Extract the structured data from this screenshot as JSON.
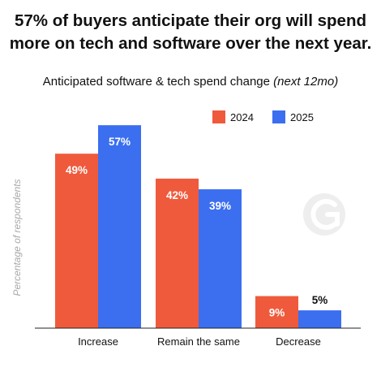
{
  "headline": {
    "line1": "57% of buyers anticipate their org will spend",
    "line2": "more on tech and software over the next year."
  },
  "chart_data": {
    "type": "bar",
    "title": "Anticipated software & tech spend change",
    "title_suffix": "(next 12mo)",
    "ylabel": "Percentage of respondents",
    "xlabel": "",
    "categories": [
      "Increase",
      "Remain the same",
      "Decrease"
    ],
    "series": [
      {
        "name": "2024",
        "values": [
          49,
          42,
          9
        ],
        "labels": [
          "49%",
          "42%",
          "9%"
        ],
        "color": "#ef5a3c"
      },
      {
        "name": "2025",
        "values": [
          57,
          39,
          5
        ],
        "labels": [
          "57%",
          "39%",
          "5%"
        ],
        "color": "#3b6ff0"
      }
    ],
    "ylim": [
      0,
      60
    ],
    "grid": false,
    "legend": "top-right"
  },
  "watermark": {
    "icon": "g2-logo-icon"
  }
}
